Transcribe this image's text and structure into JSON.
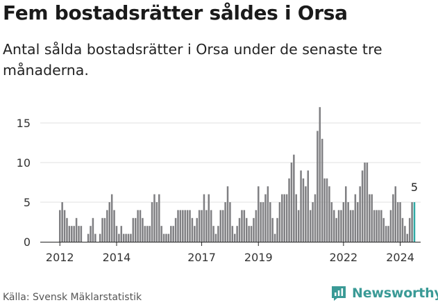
{
  "title": "Fem bostadsrätter såldes i Orsa",
  "subtitle": "Antal sålda bostadsrätter i Orsa under de senaste tre månaderna.",
  "source": "Källa: Svensk Mäklarstatistik",
  "logo_text": "Newsworthy",
  "colors": {
    "bar": "#7f7f82",
    "highlight": "#30a9a4",
    "grid": "#e0e0e0",
    "brand": "#3a9a96"
  },
  "chart_data": {
    "type": "bar",
    "title": "Fem bostadsrätter såldes i Orsa",
    "xlabel": "",
    "ylabel": "",
    "ylim": [
      0,
      17
    ],
    "yticks": [
      0,
      5,
      10,
      15
    ],
    "xticks": [
      "2012",
      "2014",
      "2017",
      "2019",
      "2022",
      "2024"
    ],
    "start": "2012-01",
    "frequency": "monthly",
    "values": [
      4,
      5,
      4,
      3,
      2,
      2,
      2,
      3,
      2,
      2,
      0,
      0,
      1,
      2,
      3,
      1,
      0,
      1,
      3,
      3,
      4,
      5,
      6,
      4,
      2,
      1,
      2,
      1,
      1,
      1,
      1,
      3,
      3,
      4,
      4,
      3,
      2,
      2,
      2,
      5,
      6,
      5,
      6,
      2,
      1,
      1,
      1,
      2,
      2,
      3,
      4,
      4,
      4,
      4,
      4,
      4,
      3,
      2,
      3,
      4,
      4,
      6,
      4,
      6,
      4,
      2,
      1,
      2,
      4,
      4,
      5,
      7,
      5,
      2,
      1,
      2,
      3,
      4,
      4,
      3,
      2,
      2,
      3,
      4,
      7,
      5,
      5,
      6,
      7,
      5,
      3,
      1,
      3,
      5,
      6,
      6,
      6,
      8,
      10,
      11,
      6,
      4,
      9,
      8,
      7,
      9,
      4,
      5,
      6,
      14,
      17,
      13,
      8,
      8,
      7,
      5,
      4,
      3,
      4,
      4,
      5,
      7,
      5,
      4,
      4,
      6,
      5,
      7,
      9,
      10,
      10,
      6,
      6,
      4,
      4,
      4,
      4,
      3,
      2,
      2,
      4,
      6,
      7,
      5,
      5,
      3,
      2,
      1,
      3,
      5,
      5
    ],
    "last_value_label": "5",
    "highlight_last": true
  }
}
